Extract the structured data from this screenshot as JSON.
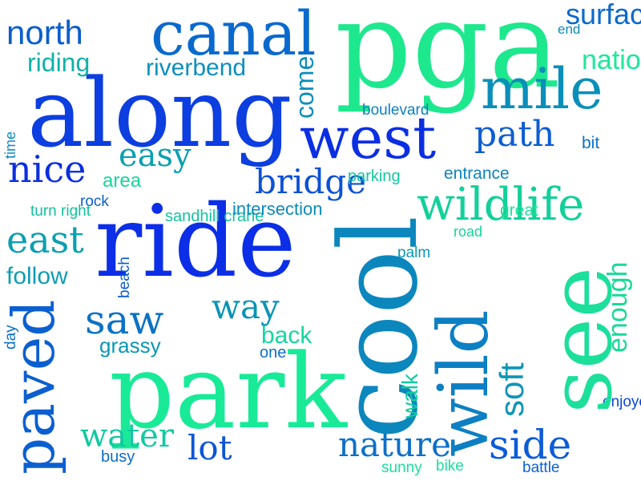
{
  "words": [
    {
      "text": "pga",
      "color": "#1de88e"
    },
    {
      "text": "along",
      "color": "#0c3ee0"
    },
    {
      "text": "ride",
      "color": "#0b2ee6"
    },
    {
      "text": "park",
      "color": "#19ea98"
    },
    {
      "text": "mile",
      "color": "#0a8fb9"
    },
    {
      "text": "canal",
      "color": "#0a69cd"
    },
    {
      "text": "west",
      "color": "#0a2fe3"
    },
    {
      "text": "side",
      "color": "#0b5bd8"
    },
    {
      "text": "north",
      "color": "#0b5dcc"
    },
    {
      "text": "nice",
      "color": "#0b2ee0"
    },
    {
      "text": "easy",
      "color": "#0a9fb1"
    },
    {
      "text": "bridge",
      "color": "#0a51d6"
    },
    {
      "text": "wildlife",
      "color": "#13d09a"
    },
    {
      "text": "east",
      "color": "#0d9fb0"
    },
    {
      "text": "saw",
      "color": "#0c72c4"
    },
    {
      "text": "way",
      "color": "#0b93b5"
    },
    {
      "text": "lot",
      "color": "#0b55d5"
    },
    {
      "text": "path",
      "color": "#0c5dd2"
    },
    {
      "text": "water",
      "color": "#11c9a0"
    },
    {
      "text": "nature",
      "color": "#0d6fc9"
    },
    {
      "text": "surface",
      "color": "#0c69cc"
    },
    {
      "text": "national",
      "color": "#1ce89a"
    },
    {
      "text": "riverbend",
      "color": "#0d8fbd"
    },
    {
      "text": "riding",
      "color": "#0fb1a9"
    },
    {
      "text": "follow",
      "color": "#0f9db2"
    },
    {
      "text": "grassy",
      "color": "#0b97b4"
    },
    {
      "text": "back",
      "color": "#15d6a0"
    },
    {
      "text": "area",
      "color": "#16d59d"
    },
    {
      "text": "end",
      "color": "#0b8dbb"
    },
    {
      "text": "boulevard",
      "color": "#0c80c2"
    },
    {
      "text": "bit",
      "color": "#0c73c7"
    },
    {
      "text": "parking",
      "color": "#12c7a2"
    },
    {
      "text": "entrance",
      "color": "#0b84c0"
    },
    {
      "text": "rock",
      "color": "#0c60cf"
    },
    {
      "text": "turn right",
      "color": "#12c29f"
    },
    {
      "text": "sandhill crane",
      "color": "#12c4a0"
    },
    {
      "text": "intersection",
      "color": "#0b8bbd"
    },
    {
      "text": "great",
      "color": "#1de39a"
    },
    {
      "text": "road",
      "color": "#16d59d"
    },
    {
      "text": "palm",
      "color": "#0b96b6"
    },
    {
      "text": "one",
      "color": "#0c6fca"
    },
    {
      "text": "busy",
      "color": "#0b6ecb"
    },
    {
      "text": "sunny",
      "color": "#19e09b"
    },
    {
      "text": "bike",
      "color": "#19df9a"
    },
    {
      "text": "battle",
      "color": "#0b62d0"
    },
    {
      "text": "enjoyed",
      "color": "#0b49d8"
    },
    {
      "text": "cool",
      "color": "#0b87bd"
    },
    {
      "text": "see",
      "color": "#1bdf9a"
    },
    {
      "text": "wild",
      "color": "#0d7fc3"
    },
    {
      "text": "paved",
      "color": "#0b5fd0"
    },
    {
      "text": "soft",
      "color": "#0f95b5"
    },
    {
      "text": "enough",
      "color": "#1bd89b"
    },
    {
      "text": "come",
      "color": "#0b8fbb"
    },
    {
      "text": "walk",
      "color": "#13cda0"
    },
    {
      "text": "time",
      "color": "#0b8bbd"
    },
    {
      "text": "beach",
      "color": "#0b5bd0"
    },
    {
      "text": "day",
      "color": "#0a72c7"
    }
  ]
}
